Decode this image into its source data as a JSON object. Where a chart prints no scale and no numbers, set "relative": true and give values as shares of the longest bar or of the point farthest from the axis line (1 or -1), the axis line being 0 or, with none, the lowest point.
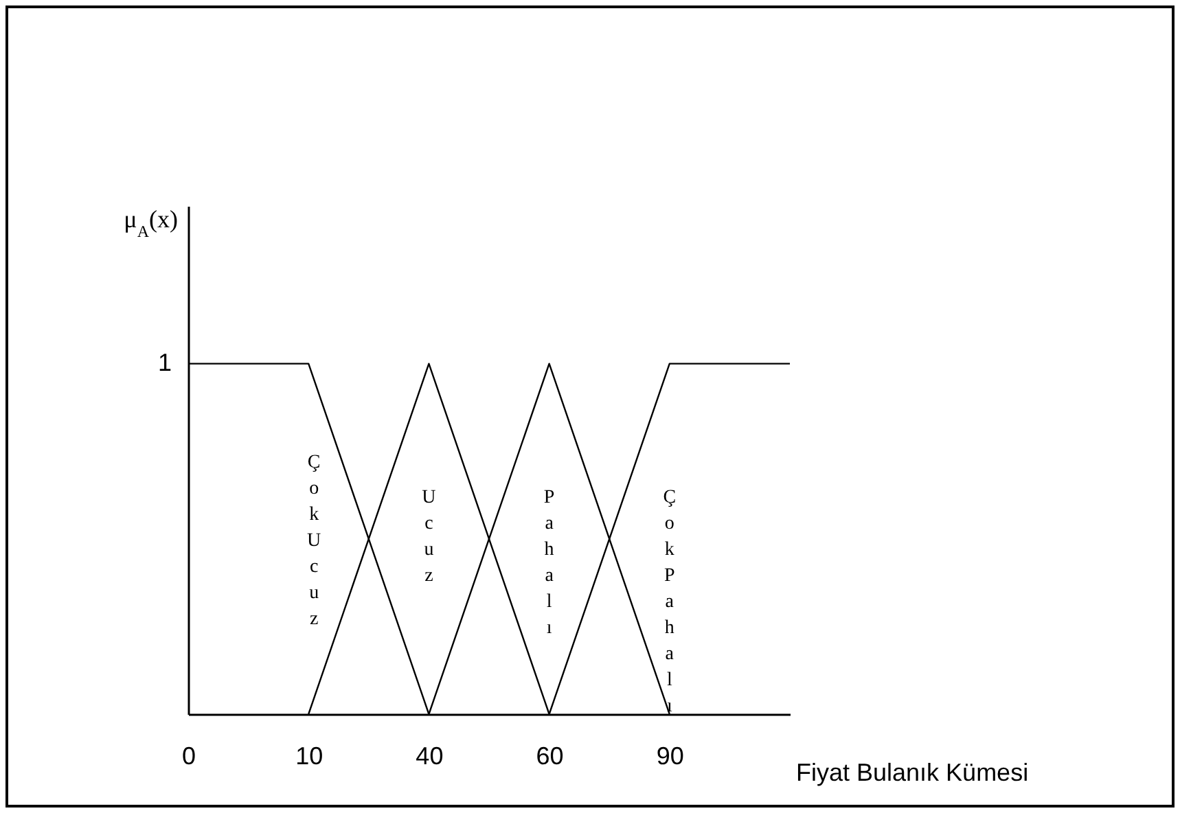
{
  "chart_data": {
    "type": "line",
    "xlabel": "Fiyat Bulanık Kümesi",
    "ylabel": "μ$_{A}$(x)",
    "categories": [
      "0",
      "10",
      "40",
      "60",
      "90",
      null
    ],
    "series": [
      {
        "name": "Çok Ucuz",
        "color": "#000000",
        "values": [
          1,
          1,
          0,
          null,
          null,
          null
        ]
      },
      {
        "name": "Ucuz",
        "color": "#000000",
        "values": [
          null,
          0,
          1,
          0,
          null,
          null
        ]
      },
      {
        "name": "Pahalı",
        "color": "#000000",
        "values": [
          null,
          null,
          0,
          1,
          0,
          null
        ]
      },
      {
        "name": "Çok Pahalı",
        "color": "#000000",
        "values": [
          null,
          null,
          null,
          0,
          1,
          1
        ]
      }
    ],
    "relative": true,
    "annotations": [
      "1"
    ],
    "grid": false,
    "marker": "none",
    "line_style": "solid"
  }
}
